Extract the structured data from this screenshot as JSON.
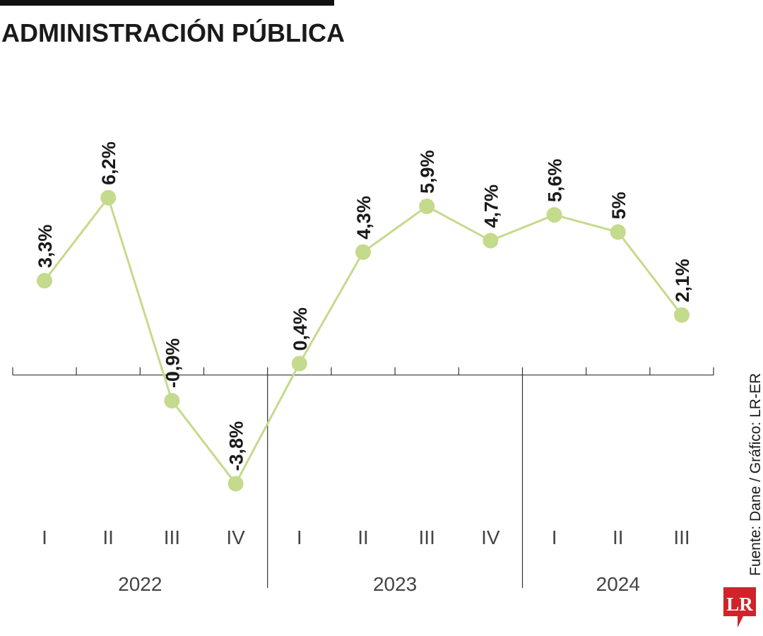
{
  "chart_data": {
    "type": "line",
    "title": "ADMINISTRACIÓN PÚBLICA",
    "groups": [
      {
        "label": "2022",
        "categories": [
          "I",
          "II",
          "III",
          "IV"
        ]
      },
      {
        "label": "2023",
        "categories": [
          "I",
          "II",
          "III",
          "IV"
        ]
      },
      {
        "label": "2024",
        "categories": [
          "I",
          "II",
          "III"
        ]
      }
    ],
    "values": [
      3.3,
      6.2,
      -0.9,
      -3.8,
      0.4,
      4.3,
      5.9,
      4.7,
      5.6,
      5,
      2.1
    ],
    "value_labels": [
      "3,3%",
      "6,2%",
      "-0,9%",
      "-3,8%",
      "0,4%",
      "4,3%",
      "5,9%",
      "4,7%",
      "5,6%",
      "5%",
      "2,1%"
    ],
    "color": "#c4da8c",
    "ylim": [
      -5,
      8
    ],
    "source": "Fuente: Dane / Gráfico: LR-ER",
    "logo": "LR"
  }
}
